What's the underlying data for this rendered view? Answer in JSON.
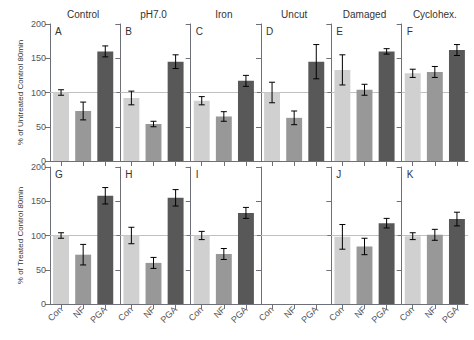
{
  "chart_data": [
    {
      "type": "bar",
      "title": "Control",
      "annotation": "A",
      "ylabel": "% of Untreated Control 80min",
      "categories": [
        "Con",
        "NF",
        "PGA"
      ],
      "values": [
        100,
        73,
        160
      ],
      "errors": [
        4,
        13,
        8
      ],
      "colors": [
        "#d0d0d0",
        "#989898",
        "#585858"
      ],
      "ylim": [
        0,
        200
      ],
      "yticks": [
        0,
        50,
        100,
        150,
        200
      ],
      "grid": false,
      "reference_line": 100,
      "tick_labels": "y"
    },
    {
      "type": "bar",
      "title": "pH7.0",
      "annotation": "B",
      "categories": [
        "Con",
        "NF",
        "PGA"
      ],
      "values": [
        92,
        54,
        145
      ],
      "errors": [
        10,
        4,
        10
      ],
      "colors": [
        "#d0d0d0",
        "#989898",
        "#585858"
      ],
      "ylim": [
        0,
        200
      ],
      "yticks": [
        0,
        50,
        100,
        150,
        200
      ],
      "grid": false,
      "reference_line": 100,
      "tick_labels": false
    },
    {
      "type": "bar",
      "title": "Iron",
      "annotation": "C",
      "categories": [
        "Con",
        "NF",
        "PGA"
      ],
      "values": [
        88,
        65,
        117
      ],
      "errors": [
        6,
        7,
        8
      ],
      "colors": [
        "#d0d0d0",
        "#989898",
        "#585858"
      ],
      "ylim": [
        0,
        200
      ],
      "yticks": [
        0,
        50,
        100,
        150,
        200
      ],
      "grid": false,
      "reference_line": 100,
      "tick_labels": false
    },
    {
      "type": "bar",
      "title": "Uncut",
      "annotation": "D",
      "categories": [
        "Con",
        "NF",
        "PGA"
      ],
      "values": [
        100,
        63,
        145
      ],
      "errors": [
        15,
        10,
        25
      ],
      "colors": [
        "#d0d0d0",
        "#989898",
        "#585858"
      ],
      "ylim": [
        0,
        200
      ],
      "yticks": [
        0,
        50,
        100,
        150,
        200
      ],
      "grid": false,
      "reference_line": 100,
      "tick_labels": false
    },
    {
      "type": "bar",
      "title": "Damaged",
      "annotation": "E",
      "categories": [
        "Con",
        "NF",
        "PGA"
      ],
      "values": [
        133,
        104,
        160
      ],
      "errors": [
        22,
        8,
        4
      ],
      "colors": [
        "#d0d0d0",
        "#989898",
        "#585858"
      ],
      "ylim": [
        0,
        200
      ],
      "yticks": [
        0,
        50,
        100,
        150,
        200
      ],
      "grid": false,
      "reference_line": 100,
      "tick_labels": false
    },
    {
      "type": "bar",
      "title": "Cyclohex.",
      "annotation": "F",
      "categories": [
        "Con",
        "NF",
        "PGA"
      ],
      "values": [
        128,
        130,
        162
      ],
      "errors": [
        6,
        8,
        8
      ],
      "colors": [
        "#d0d0d0",
        "#989898",
        "#585858"
      ],
      "ylim": [
        0,
        200
      ],
      "yticks": [
        0,
        50,
        100,
        150,
        200
      ],
      "grid": false,
      "reference_line": 100,
      "tick_labels": false
    },
    {
      "type": "bar",
      "annotation": "G",
      "ylabel": "% of Treated Control 80min",
      "categories": [
        "Con",
        "NF",
        "PGA"
      ],
      "values": [
        100,
        72,
        158
      ],
      "errors": [
        4,
        15,
        12
      ],
      "colors": [
        "#d0d0d0",
        "#989898",
        "#585858"
      ],
      "ylim": [
        0,
        200
      ],
      "yticks": [
        0,
        50,
        100,
        150,
        200
      ],
      "grid": false,
      "reference_line": 100
    },
    {
      "type": "bar",
      "annotation": "H",
      "categories": [
        "Con",
        "NF",
        "PGA"
      ],
      "values": [
        100,
        60,
        155
      ],
      "errors": [
        12,
        8,
        12
      ],
      "colors": [
        "#d0d0d0",
        "#989898",
        "#585858"
      ],
      "ylim": [
        0,
        200
      ],
      "yticks": [
        0,
        50,
        100,
        150,
        200
      ],
      "grid": false,
      "reference_line": 100,
      "tick_labels": "x"
    },
    {
      "type": "bar",
      "annotation": "I",
      "categories": [
        "Con",
        "NF",
        "PGA"
      ],
      "values": [
        100,
        73,
        133
      ],
      "errors": [
        6,
        8,
        8
      ],
      "colors": [
        "#d0d0d0",
        "#989898",
        "#585858"
      ],
      "ylim": [
        0,
        200
      ],
      "yticks": [
        0,
        50,
        100,
        150,
        200
      ],
      "grid": false,
      "reference_line": 100,
      "tick_labels": "x"
    },
    {
      "type": "bar",
      "categories": [
        "Con",
        "NF",
        "PGA"
      ],
      "values": [
        null,
        null,
        null
      ],
      "errors": [
        null,
        null,
        null
      ],
      "colors": [
        "#d0d0d0",
        "#989898",
        "#585858"
      ],
      "ylim": [
        0,
        200
      ],
      "yticks": [
        0,
        50,
        100,
        150,
        200
      ],
      "grid": false,
      "reference_line": 100,
      "tick_labels": "x"
    },
    {
      "type": "bar",
      "annotation": "J",
      "categories": [
        "Con",
        "NF",
        "PGA"
      ],
      "values": [
        98,
        84,
        118
      ],
      "errors": [
        18,
        12,
        7
      ],
      "colors": [
        "#d0d0d0",
        "#989898",
        "#585858"
      ],
      "ylim": [
        0,
        200
      ],
      "yticks": [
        0,
        50,
        100,
        150,
        200
      ],
      "grid": false,
      "reference_line": 100,
      "tick_labels": "x"
    },
    {
      "type": "bar",
      "annotation": "K",
      "categories": [
        "Con",
        "NF",
        "PGA"
      ],
      "values": [
        99,
        101,
        124
      ],
      "errors": [
        5,
        8,
        10
      ],
      "colors": [
        "#d0d0d0",
        "#989898",
        "#585858"
      ],
      "ylim": [
        0,
        200
      ],
      "yticks": [
        0,
        50,
        100,
        150,
        200
      ],
      "grid": false,
      "reference_line": 100,
      "tick_labels": "x"
    }
  ]
}
